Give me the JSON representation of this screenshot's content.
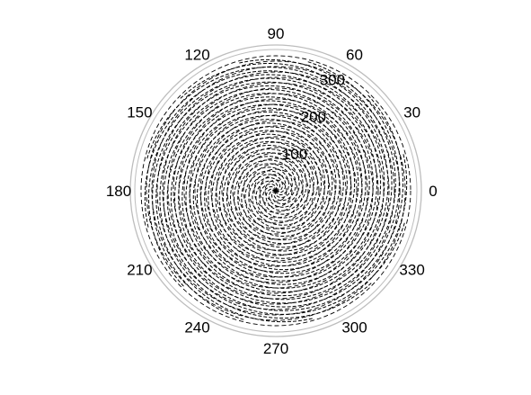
{
  "chart_data": {
    "type": "polar-line",
    "theta_unit": "degrees",
    "angle_ticks": [
      "0",
      "30",
      "60",
      "90",
      "120",
      "150",
      "180",
      "210",
      "240",
      "270",
      "300",
      "330"
    ],
    "angle_tick_values": [
      0,
      30,
      60,
      90,
      120,
      150,
      180,
      210,
      240,
      270,
      300,
      330
    ],
    "radial_ticks": [
      "100",
      "200",
      "300"
    ],
    "radial_tick_values": [
      100,
      200,
      300
    ],
    "rlim": [
      0,
      340
    ],
    "radial_label_angle": 63,
    "grid": false,
    "line_color": "#000000",
    "line_style": "dashed",
    "series": [
      {
        "description_free": true,
        "spirals": [
          {
            "theta_start": 0,
            "direction": "ccw"
          },
          {
            "theta_start": 30,
            "direction": "ccw"
          },
          {
            "theta_start": 60,
            "direction": "ccw"
          },
          {
            "theta_start": 90,
            "direction": "ccw"
          },
          {
            "theta_start": 120,
            "direction": "ccw"
          },
          {
            "theta_start": 150,
            "direction": "ccw"
          },
          {
            "theta_start": 180,
            "direction": "ccw"
          },
          {
            "theta_start": 210,
            "direction": "ccw"
          },
          {
            "theta_start": 240,
            "direction": "ccw"
          },
          {
            "theta_start": 270,
            "direction": "ccw"
          },
          {
            "theta_start": 300,
            "direction": "ccw"
          },
          {
            "theta_start": 330,
            "direction": "ccw"
          }
        ],
        "r_growth_per_degree": 0.3,
        "r_max": 320
      }
    ]
  }
}
